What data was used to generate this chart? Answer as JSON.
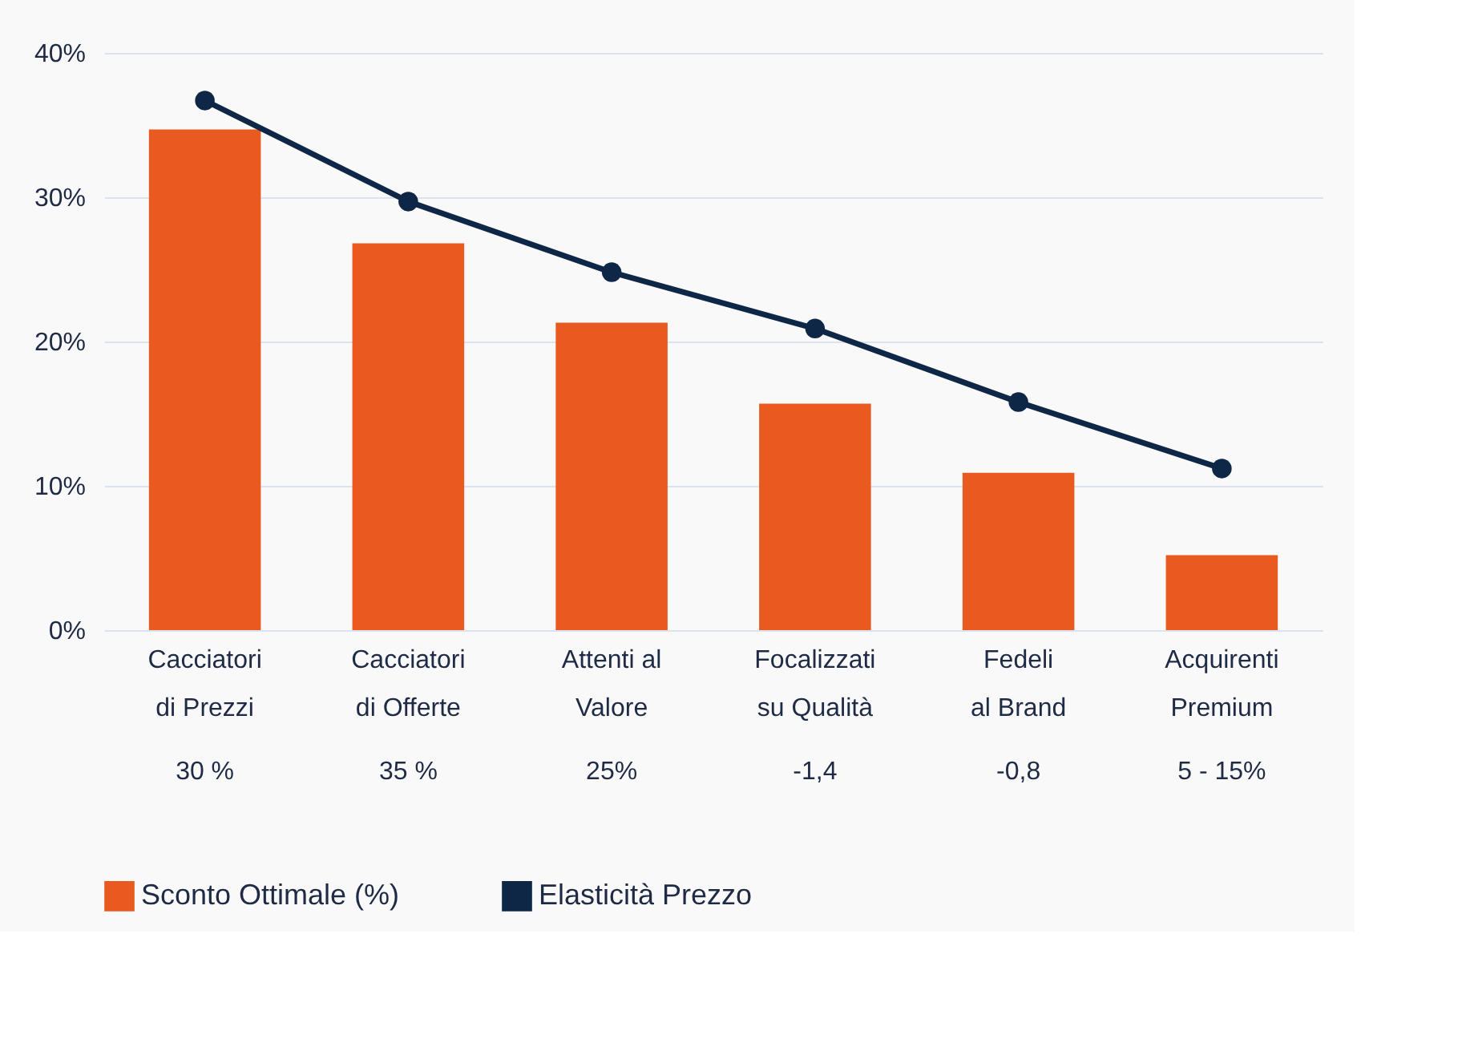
{
  "chart_data": {
    "type": "bar",
    "categories": [
      "Cacciatori\ndi Prezzi",
      "Cacciatori\ndi Offerte",
      "Attenti al\nValore",
      "Focalizzati\nsu Qualità",
      "Fedeli\nal Brand",
      "Acquirenti\nPremium"
    ],
    "series": [
      {
        "name": "Sconto Ottimale (%)",
        "color": "#e85a20",
        "values": [
          34.7,
          26.8,
          21.3,
          15.7,
          10.9,
          5.2
        ]
      },
      {
        "name": "Elasticità Prezzo",
        "type": "line",
        "color": "#0f2747",
        "marker": "circle",
        "line_style": "solid",
        "values": [
          36.7,
          29.7,
          24.8,
          20.9,
          15.8,
          11.2
        ]
      }
    ],
    "annotations": [
      "30 %",
      "35 %",
      "25%",
      "-1,4",
      "-0,8",
      "5 - 15%"
    ],
    "ylim": [
      0,
      40
    ],
    "yticks": [
      {
        "value": 0,
        "label": "0%"
      },
      {
        "value": 10,
        "label": "10%"
      },
      {
        "value": 20,
        "label": "20%"
      },
      {
        "value": 30,
        "label": "30%"
      },
      {
        "value": 40,
        "label": "40%"
      }
    ],
    "grid": "y",
    "legend": "bottom"
  }
}
